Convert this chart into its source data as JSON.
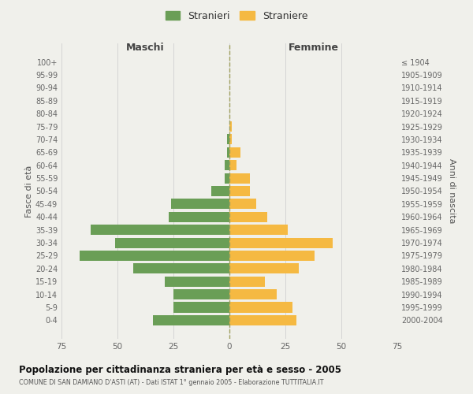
{
  "age_groups": [
    "0-4",
    "5-9",
    "10-14",
    "15-19",
    "20-24",
    "25-29",
    "30-34",
    "35-39",
    "40-44",
    "45-49",
    "50-54",
    "55-59",
    "60-64",
    "65-69",
    "70-74",
    "75-79",
    "80-84",
    "85-89",
    "90-94",
    "95-99",
    "100+"
  ],
  "birth_years": [
    "2000-2004",
    "1995-1999",
    "1990-1994",
    "1985-1989",
    "1980-1984",
    "1975-1979",
    "1970-1974",
    "1965-1969",
    "1960-1964",
    "1955-1959",
    "1950-1954",
    "1945-1949",
    "1940-1944",
    "1935-1939",
    "1930-1934",
    "1925-1929",
    "1920-1924",
    "1915-1919",
    "1910-1914",
    "1905-1909",
    "≤ 1904"
  ],
  "maschi": [
    34,
    25,
    25,
    29,
    43,
    67,
    51,
    62,
    27,
    26,
    8,
    2,
    2,
    1,
    1,
    0,
    0,
    0,
    0,
    0,
    0
  ],
  "femmine": [
    30,
    28,
    21,
    16,
    31,
    38,
    46,
    26,
    17,
    12,
    9,
    9,
    3,
    5,
    1,
    1,
    0,
    0,
    0,
    0,
    0
  ],
  "color_maschi": "#6a9e56",
  "color_femmine": "#f5b942",
  "title": "Popolazione per cittadinanza straniera per età e sesso - 2005",
  "subtitle": "COMUNE DI SAN DAMIANO D'ASTI (AT) - Dati ISTAT 1° gennaio 2005 - Elaborazione TUTTITALIA.IT",
  "xlabel_left": "Maschi",
  "xlabel_right": "Femmine",
  "ylabel_left": "Fasce di età",
  "ylabel_right": "Anni di nascita",
  "legend_maschi": "Stranieri",
  "legend_femmine": "Straniere",
  "xlim": 75,
  "background_color": "#f0f0eb",
  "grid_color": "#d0d0d0"
}
